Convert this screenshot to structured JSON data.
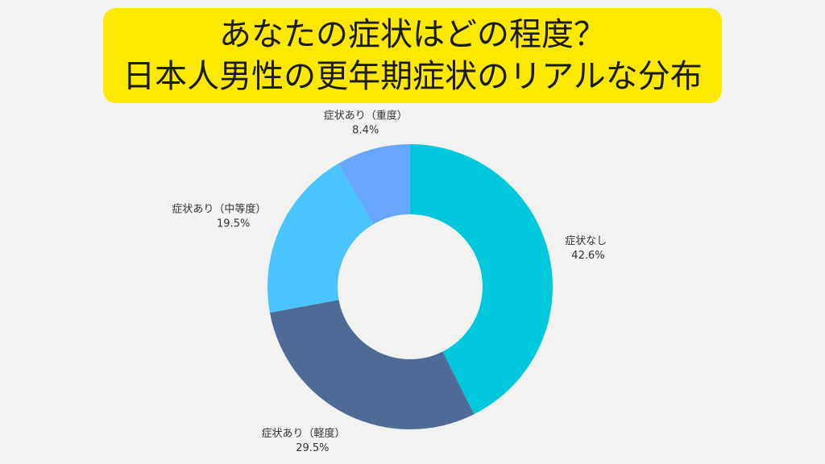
{
  "title": {
    "line1": "あなたの症状はどの程度？",
    "line2": "日本人男性の更年期症状のリアルな分布"
  },
  "colors": {
    "title_background": "#fde800",
    "page_background": "#f2f2f0"
  },
  "chart_data": {
    "type": "pie",
    "donut": true,
    "slices": [
      {
        "label": "症状なし",
        "value": 42.6,
        "value_label": "42.6%",
        "color": "#00c8dc"
      },
      {
        "label": "症状あり（軽度）",
        "value": 29.5,
        "value_label": "29.5%",
        "color": "#4e6b96"
      },
      {
        "label": "症状あり（中等度）",
        "value": 19.5,
        "value_label": "19.5%",
        "color": "#4ac4fc"
      },
      {
        "label": "症状あり（重度）",
        "value": 8.4,
        "value_label": "8.4%",
        "color": "#68a8fc"
      }
    ],
    "start": "top",
    "direction": "clockwise",
    "legend": "none"
  }
}
